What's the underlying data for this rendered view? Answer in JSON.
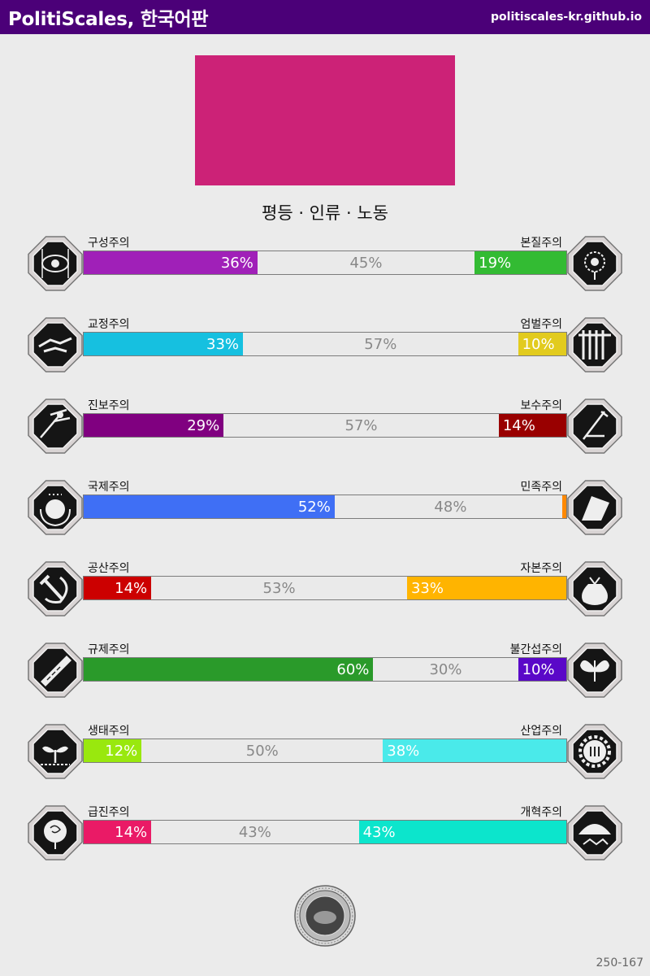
{
  "header": {
    "title": "PolitiScales, 한국어판",
    "url": "politiscales-kr.github.io"
  },
  "flag": {
    "color": "#cc2277"
  },
  "slogan": "평등 · 인류 · 노동",
  "axes": [
    {
      "left": "구성주의",
      "right": "본질주의",
      "lv": 36,
      "mv": 45,
      "rv": 19,
      "lc": "#a020b8",
      "rc": "#33bb33",
      "li": "eye-icon",
      "ri": "flower-icon"
    },
    {
      "left": "교정주의",
      "right": "엄벌주의",
      "lv": 33,
      "mv": 57,
      "rv": 10,
      "lc": "#16c0e0",
      "rc": "#e2cb1e",
      "li": "handshake-icon",
      "ri": "prison-bars-icon"
    },
    {
      "left": "진보주의",
      "right": "보수주의",
      "lv": 29,
      "mv": 57,
      "rv": 14,
      "lc": "#800080",
      "rc": "#990000",
      "li": "torch-icon",
      "ri": "quill-icon"
    },
    {
      "left": "국제주의",
      "right": "민족주의",
      "lv": 52,
      "mv": 48,
      "rv": 0,
      "lc": "#3f6ff5",
      "rc": "#ff8800",
      "li": "globe-icon",
      "ri": "white-flag-icon"
    },
    {
      "left": "공산주의",
      "right": "자본주의",
      "lv": 14,
      "mv": 53,
      "rv": 33,
      "lc": "#cc0000",
      "rc": "#ffb400",
      "li": "hammer-sickle-icon",
      "ri": "money-bag-icon"
    },
    {
      "left": "규제주의",
      "right": "불간섭주의",
      "lv": 60,
      "mv": 30,
      "rv": 10,
      "lc": "#2a9a2a",
      "rc": "#5a08c8",
      "li": "ruler-icon",
      "ri": "butterfly-icon"
    },
    {
      "left": "생태주의",
      "right": "산업주의",
      "lv": 12,
      "mv": 50,
      "rv": 38,
      "lc": "#99e80e",
      "rc": "#4aeaea",
      "li": "sprout-icon",
      "ri": "gear-icon"
    },
    {
      "left": "급진주의",
      "right": "개혁주의",
      "lv": 14,
      "mv": 43,
      "rv": 43,
      "lc": "#ea1a66",
      "rc": "#0ce5cc",
      "li": "rose-icon",
      "ri": "umbrella-icon"
    }
  ],
  "footer": "250-167"
}
